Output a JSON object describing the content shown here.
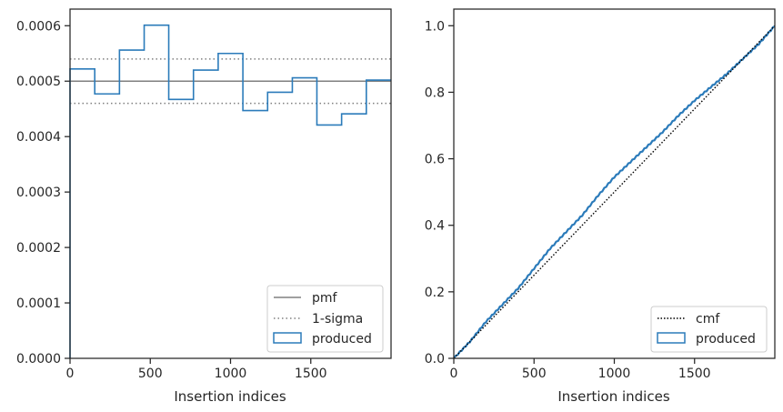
{
  "colors": {
    "hist": "#2b7bba",
    "pmf": "#808080",
    "sigma": "#808080",
    "cmf": "#000000",
    "axes": "#262626"
  },
  "chart_data": [
    {
      "type": "histogram",
      "xlabel": "Insertion indices",
      "ylabel": "",
      "xlim": [
        0,
        2000
      ],
      "ylim": [
        0,
        0.00063
      ],
      "xticks": [
        0,
        500,
        1000,
        1500
      ],
      "xtick_labels": [
        "0",
        "500",
        "1000",
        "1500"
      ],
      "yticks": [
        0,
        0.0001,
        0.0002,
        0.0003,
        0.0004,
        0.0005,
        0.0006
      ],
      "ytick_labels": [
        "0.0000",
        "0.0001",
        "0.0002",
        "0.0003",
        "0.0004",
        "0.0005",
        "0.0006"
      ],
      "bin_edges": [
        0,
        154,
        308,
        462,
        615,
        769,
        923,
        1077,
        1231,
        1385,
        1538,
        1692,
        1846,
        2000
      ],
      "values": [
        0.000522,
        0.000477,
        0.000556,
        0.000601,
        0.000467,
        0.00052,
        0.00055,
        0.000447,
        0.00048,
        0.000506,
        0.000421,
        0.000441,
        0.000502
      ],
      "pmf": 0.0005,
      "sigma": [
        0.00046,
        0.00054
      ],
      "legend": [
        "pmf",
        "1-sigma",
        "produced"
      ],
      "legend_loc": "lower right"
    },
    {
      "type": "line",
      "xlabel": "Insertion indices",
      "ylabel": "",
      "xlim": [
        0,
        2000
      ],
      "ylim": [
        0,
        1.05
      ],
      "xticks": [
        0,
        500,
        1000,
        1500
      ],
      "xtick_labels": [
        "0",
        "500",
        "1000",
        "1500"
      ],
      "yticks": [
        0,
        0.2,
        0.4,
        0.6,
        0.8,
        1.0
      ],
      "ytick_labels": [
        "0.0",
        "0.2",
        "0.4",
        "0.6",
        "0.8",
        "1.0"
      ],
      "cmf": {
        "x": [
          0,
          2000
        ],
        "y": [
          0,
          1
        ]
      },
      "produced": {
        "x": [
          0,
          100,
          200,
          300,
          400,
          500,
          600,
          700,
          800,
          900,
          1000,
          1100,
          1200,
          1300,
          1400,
          1500,
          1600,
          1700,
          1800,
          1900,
          2000
        ],
        "y": [
          0,
          0.05,
          0.11,
          0.16,
          0.21,
          0.27,
          0.33,
          0.38,
          0.43,
          0.49,
          0.545,
          0.59,
          0.635,
          0.68,
          0.73,
          0.775,
          0.815,
          0.855,
          0.9,
          0.945,
          1.0
        ]
      },
      "legend": [
        "cmf",
        "produced"
      ],
      "legend_loc": "lower right"
    }
  ]
}
